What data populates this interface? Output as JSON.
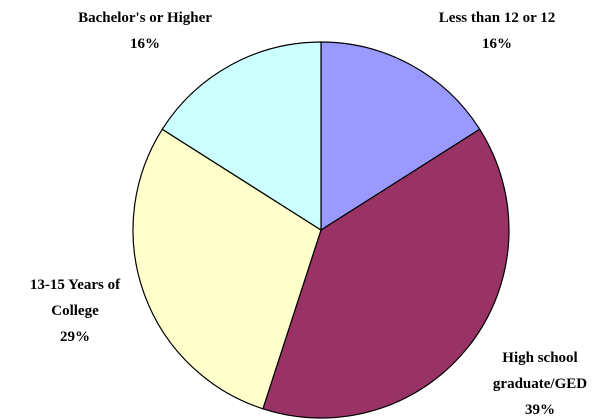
{
  "chart_data": {
    "type": "pie",
    "categories": [
      "Less than 12 or 12",
      "High school graduate/GED",
      "13-15 Years of College",
      "Bachelor's or Higher"
    ],
    "values": [
      16,
      39,
      29,
      16
    ],
    "value_labels": [
      "16%",
      "39%",
      "29%",
      "16%"
    ],
    "colors": [
      "#9999ff",
      "#993366",
      "#ffffcc",
      "#ccffff"
    ]
  }
}
